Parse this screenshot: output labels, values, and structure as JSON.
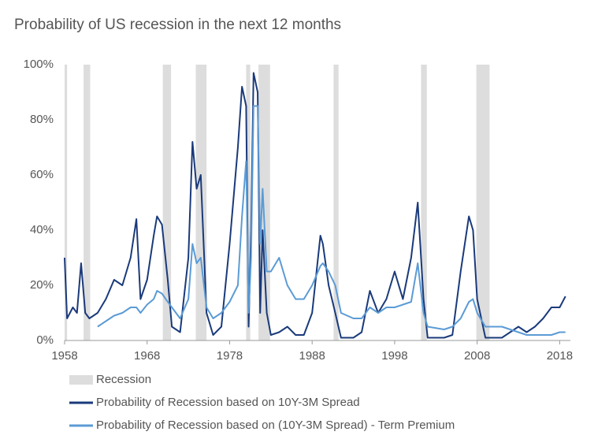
{
  "chart_data": {
    "type": "line",
    "title": "Probability of US recession in the next 12 months",
    "x": [
      1958.0,
      1958.3,
      1959.0,
      1959.5,
      1960.0,
      1960.5,
      1961.0,
      1962.0,
      1963.0,
      1964.0,
      1965.0,
      1966.0,
      1966.7,
      1967.2,
      1968.0,
      1968.8,
      1969.2,
      1969.8,
      1970.5,
      1971.0,
      1972.0,
      1973.0,
      1973.5,
      1974.0,
      1974.5,
      1975.2,
      1976.0,
      1977.0,
      1978.0,
      1979.0,
      1979.5,
      1980.0,
      1980.3,
      1980.6,
      1980.9,
      1981.4,
      1981.7,
      1982.0,
      1982.5,
      1983.0,
      1984.0,
      1985.0,
      1986.0,
      1987.0,
      1988.0,
      1989.0,
      1989.3,
      1990.0,
      1990.8,
      1991.5,
      1993.0,
      1994.0,
      1995.0,
      1996.0,
      1997.0,
      1998.0,
      1999.0,
      2000.0,
      2000.8,
      2001.5,
      2002.0,
      2004.0,
      2005.0,
      2006.0,
      2007.0,
      2007.5,
      2008.0,
      2009.0,
      2011.0,
      2012.0,
      2013.0,
      2014.0,
      2015.0,
      2016.0,
      2017.0,
      2018.0,
      2018.7
    ],
    "series": [
      {
        "name": "Probability of Recession based on 10Y-3M Spread",
        "color": "#1a3a7a",
        "values": [
          30,
          8,
          12,
          10,
          28,
          10,
          8,
          10,
          15,
          22,
          20,
          30,
          44,
          15,
          22,
          38,
          45,
          42,
          22,
          5,
          3,
          30,
          72,
          55,
          60,
          10,
          2,
          5,
          35,
          70,
          92,
          85,
          5,
          40,
          97,
          90,
          10,
          40,
          10,
          2,
          3,
          5,
          2,
          2,
          10,
          38,
          35,
          20,
          10,
          1,
          1,
          3,
          18,
          10,
          15,
          25,
          15,
          30,
          50,
          15,
          1,
          1,
          2,
          25,
          45,
          40,
          15,
          1,
          1,
          3,
          5,
          3,
          5,
          8,
          12,
          12,
          16
        ]
      },
      {
        "name": "Probability of Recession based on (10Y-3M Spread) - Term Premium",
        "color": "#5b9bd5",
        "values": [
          null,
          null,
          null,
          null,
          null,
          null,
          null,
          5,
          7,
          9,
          10,
          12,
          12,
          10,
          13,
          15,
          18,
          17,
          14,
          12,
          8,
          15,
          35,
          28,
          30,
          12,
          8,
          10,
          14,
          20,
          45,
          65,
          10,
          30,
          85,
          85,
          35,
          55,
          25,
          25,
          30,
          20,
          15,
          15,
          20,
          27,
          28,
          25,
          20,
          10,
          8,
          8,
          12,
          10,
          12,
          12,
          13,
          14,
          28,
          10,
          5,
          4,
          5,
          8,
          14,
          15,
          10,
          5,
          5,
          4,
          3,
          2,
          2,
          2,
          2,
          3,
          3
        ]
      }
    ],
    "recessions": {
      "name": "Recession",
      "color": "#dddddd",
      "periods": [
        [
          1958.0,
          1958.3
        ],
        [
          1960.3,
          1961.1
        ],
        [
          1969.9,
          1970.9
        ],
        [
          1973.9,
          1975.2
        ],
        [
          1980.0,
          1980.5
        ],
        [
          1981.5,
          1982.9
        ],
        [
          1990.6,
          1991.2
        ],
        [
          2001.2,
          2001.9
        ],
        [
          2007.9,
          2009.5
        ]
      ]
    },
    "xlim": [
      1958,
      2019.3
    ],
    "xticks": [
      1958,
      1968,
      1978,
      1988,
      1998,
      2008,
      2018
    ],
    "ylim": [
      0,
      100
    ],
    "yticks": [
      {
        "value": 0,
        "label": "0%"
      },
      {
        "value": 20,
        "label": "20%"
      },
      {
        "value": 40,
        "label": "40%"
      },
      {
        "value": 60,
        "label": "60%"
      },
      {
        "value": 80,
        "label": "80%"
      },
      {
        "value": 100,
        "label": "100%"
      }
    ],
    "grid": false
  }
}
